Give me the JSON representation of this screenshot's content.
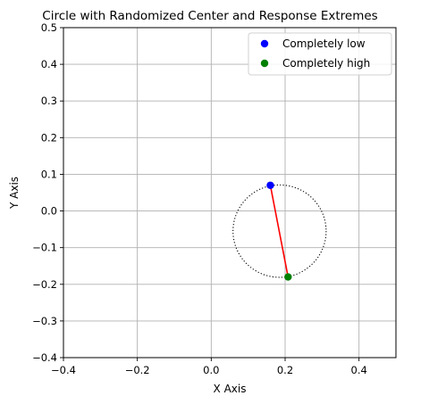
{
  "chart_data": {
    "type": "scatter",
    "title": "Circle with Randomized Center and Response Extremes",
    "xlabel": "X Axis",
    "ylabel": "Y Axis",
    "xlim": [
      -0.4,
      0.5
    ],
    "ylim": [
      -0.4,
      0.5
    ],
    "x_ticks": [
      "-0.4",
      "-0.2",
      "0.0",
      "0.2",
      "0.4"
    ],
    "y_ticks": [
      "-0.4",
      "-0.3",
      "-0.2",
      "-0.1",
      "0.0",
      "0.1",
      "0.2",
      "0.3",
      "0.4",
      "0.5"
    ],
    "grid": true,
    "legend_position": "upper right",
    "circle": {
      "center": [
        0.185,
        -0.055
      ],
      "radius": 0.126,
      "style": "dotted",
      "color": "#000000"
    },
    "series": [
      {
        "name": "Completely low",
        "color": "#0000ff",
        "x": [
          0.16
        ],
        "y": [
          0.07
        ]
      },
      {
        "name": "Completely high",
        "color": "#008000",
        "x": [
          0.208
        ],
        "y": [
          -0.18
        ]
      }
    ],
    "connector": {
      "from": [
        0.16,
        0.07
      ],
      "to": [
        0.208,
        -0.18
      ],
      "color": "#ff0000"
    }
  }
}
